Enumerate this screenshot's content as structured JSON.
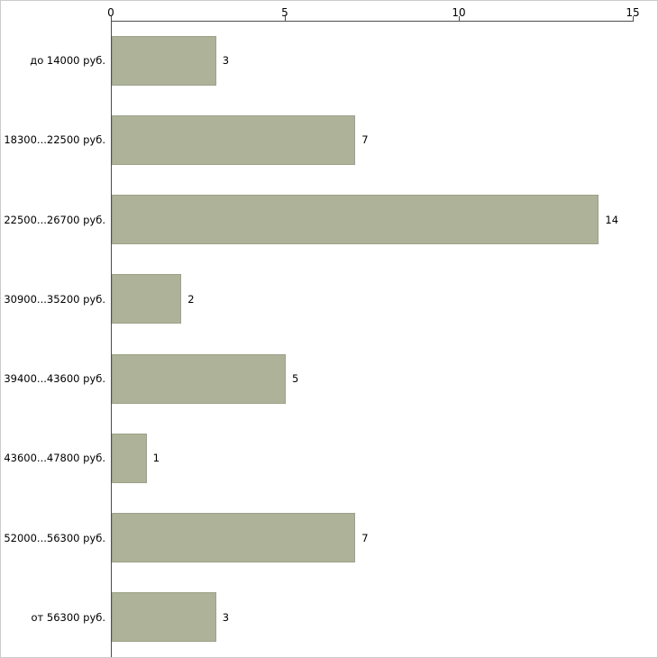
{
  "chart_data": {
    "type": "bar",
    "orientation": "horizontal",
    "title": "",
    "xlabel": "",
    "ylabel": "",
    "categories": [
      "до 14000 руб.",
      "18300...22500 руб.",
      "22500...26700 руб.",
      "30900...35200 руб.",
      "39400...43600 руб.",
      "43600...47800 руб.",
      "52000...56300 руб.",
      "от 56300 руб."
    ],
    "values": [
      3,
      7,
      14,
      2,
      5,
      1,
      7,
      3
    ],
    "xlim": [
      0,
      15
    ],
    "x_ticks": [
      0,
      5,
      10,
      15
    ],
    "axis_position": "top",
    "grid": false,
    "legend_position": "none",
    "bar_color": "#adb299",
    "bar_border_color": "#9ba287",
    "axis_color": "#4d4d4d",
    "text_color": "#000000",
    "background_color": "#ffffff"
  }
}
